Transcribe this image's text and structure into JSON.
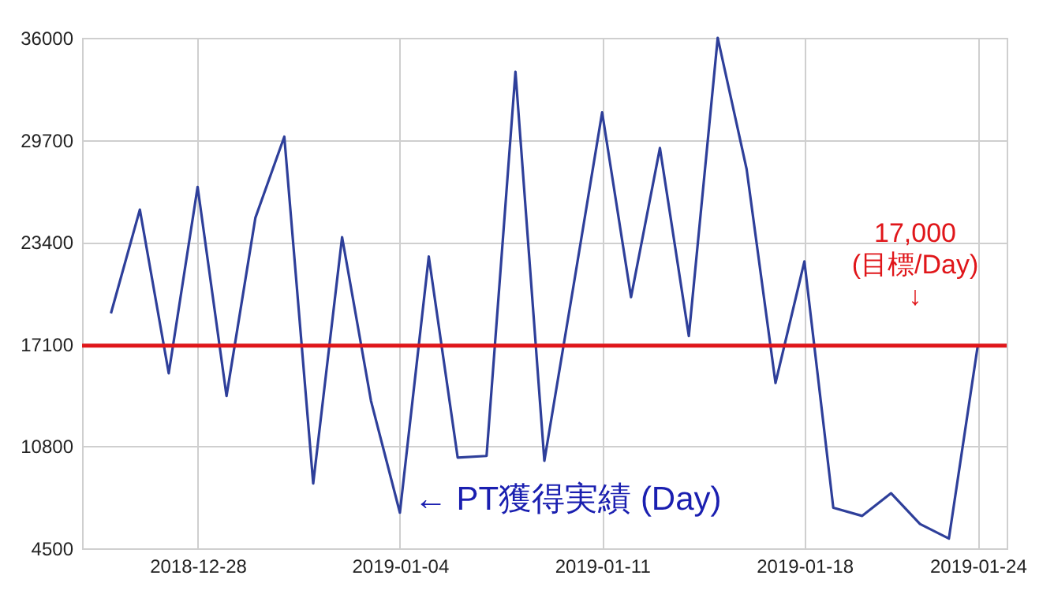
{
  "chart_data": {
    "type": "line",
    "x": [
      "2018-12-25",
      "2018-12-26",
      "2018-12-27",
      "2018-12-28",
      "2018-12-29",
      "2018-12-30",
      "2018-12-31",
      "2019-01-01",
      "2019-01-02",
      "2019-01-03",
      "2019-01-04",
      "2019-01-05",
      "2019-01-06",
      "2019-01-07",
      "2019-01-08",
      "2019-01-09",
      "2019-01-10",
      "2019-01-11",
      "2019-01-12",
      "2019-01-13",
      "2019-01-14",
      "2019-01-15",
      "2019-01-16",
      "2019-01-17",
      "2019-01-18",
      "2019-01-19",
      "2019-01-20",
      "2019-01-21",
      "2019-01-22",
      "2019-01-23",
      "2019-01-24"
    ],
    "series": [
      {
        "color": "#2e3f9a",
        "values": [
          19000,
          25400,
          15300,
          26800,
          13900,
          24900,
          29900,
          8500,
          23700,
          13600,
          6700,
          22500,
          10100,
          10200,
          33900,
          9900,
          20600,
          31400,
          20000,
          29200,
          17600,
          36000,
          27900,
          14700,
          22200,
          7000,
          6500,
          7900,
          6000,
          5100,
          17000
        ]
      }
    ],
    "xlim": [
      "2018-12-24",
      "2019-01-25"
    ],
    "xticks": [
      "2018-12-28",
      "2019-01-04",
      "2019-01-11",
      "2019-01-18",
      "2019-01-24"
    ],
    "ylim": [
      4500,
      36000
    ],
    "yticks": [
      4500,
      10800,
      17100,
      23400,
      29700,
      36000
    ],
    "grid": true,
    "marker": "none",
    "line_style": "solid",
    "ref_lines": [
      {
        "axis": "y",
        "value": 17000,
        "label": "17,000\n(目標/Day)\n↓",
        "color": "#e0161a"
      }
    ],
    "annotations": [
      {
        "text": "← PT獲得実績 (Day)",
        "x": "2019-01-04",
        "y": 6700
      }
    ]
  }
}
